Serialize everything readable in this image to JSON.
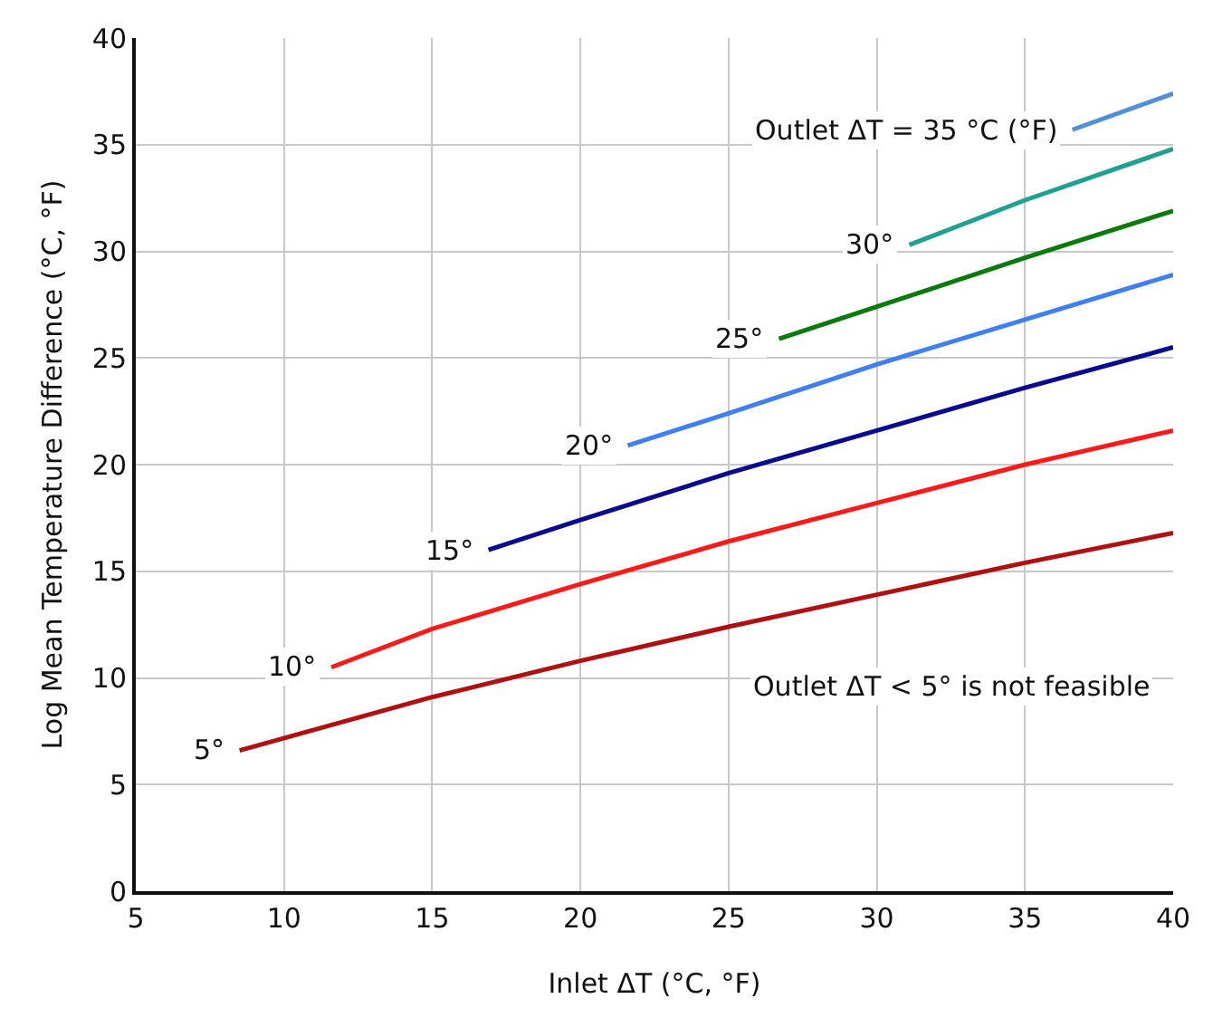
{
  "chart_data": {
    "type": "line",
    "xlabel": "Inlet ΔT (°C, °F)",
    "ylabel": "Log Mean Temperature Difference (°C, °F)",
    "xlim": [
      5,
      40
    ],
    "xticks": [
      5,
      10,
      15,
      20,
      25,
      30,
      35,
      40
    ],
    "ylim": [
      0,
      40
    ],
    "yticks": [
      0,
      5,
      10,
      15,
      20,
      25,
      30,
      35,
      40
    ],
    "grid": true,
    "legend": false,
    "marker": "none",
    "line_style": "solid",
    "series": [
      {
        "name": "5°",
        "color": "#b01010",
        "x": [
          8.5,
          15,
          20,
          25,
          30,
          35,
          40
        ],
        "values": [
          6.6,
          9.1,
          10.8,
          12.4,
          13.9,
          15.4,
          16.8
        ]
      },
      {
        "name": "10°",
        "color": "#ff1a1a",
        "x": [
          11.6,
          15,
          20,
          25,
          30,
          35,
          40
        ],
        "values": [
          10.5,
          12.3,
          14.4,
          16.4,
          18.2,
          20.0,
          21.6
        ]
      },
      {
        "name": "15°",
        "color": "#0a0a90",
        "x": [
          16.9,
          20,
          25,
          30,
          35,
          40
        ],
        "values": [
          16.0,
          17.4,
          19.6,
          21.6,
          23.6,
          25.5
        ]
      },
      {
        "name": "20°",
        "color": "#3f7ff0",
        "x": [
          21.6,
          25,
          30,
          35,
          40
        ],
        "values": [
          20.9,
          22.4,
          24.7,
          26.8,
          28.9
        ]
      },
      {
        "name": "25°",
        "color": "#0a7a0a",
        "x": [
          26.7,
          30,
          35,
          40
        ],
        "values": [
          25.9,
          27.4,
          29.7,
          31.9
        ]
      },
      {
        "name": "30°",
        "color": "#20a090",
        "x": [
          31.1,
          35,
          40
        ],
        "values": [
          30.3,
          32.4,
          34.8
        ]
      },
      {
        "name": "Outlet ΔT = 35 °C (°F)",
        "color": "#5090d8",
        "x": [
          36.6,
          40
        ],
        "values": [
          35.7,
          37.4
        ]
      }
    ],
    "annotations": [
      "Outlet ΔT < 5° is not feasible"
    ]
  }
}
